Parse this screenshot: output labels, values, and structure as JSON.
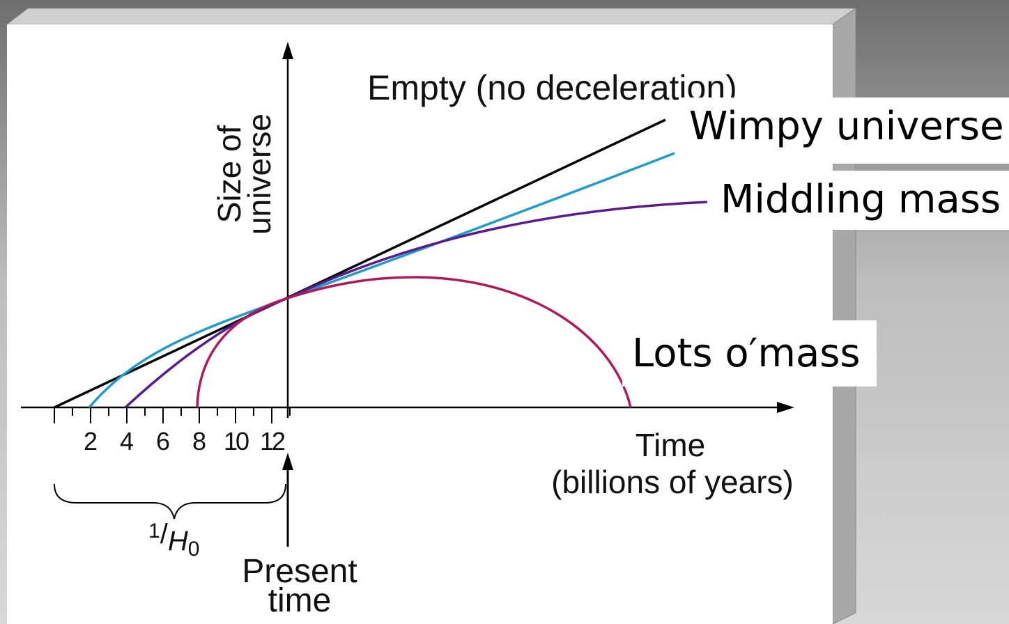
{
  "diagram": {
    "curve_label_top": "Empty (no deceleration)",
    "overlays": [
      "Wimpy universe",
      "Middling mass",
      "Lots o′mass"
    ],
    "y_label": [
      "Size of",
      "universe"
    ],
    "x_label": [
      "Time",
      "(billions of years)"
    ],
    "x_ticks": [
      "2",
      "4",
      "6",
      "8",
      "10",
      "12"
    ],
    "hubble": [
      "1",
      "/",
      "H",
      "0"
    ],
    "present": [
      "Present",
      "time"
    ]
  }
}
